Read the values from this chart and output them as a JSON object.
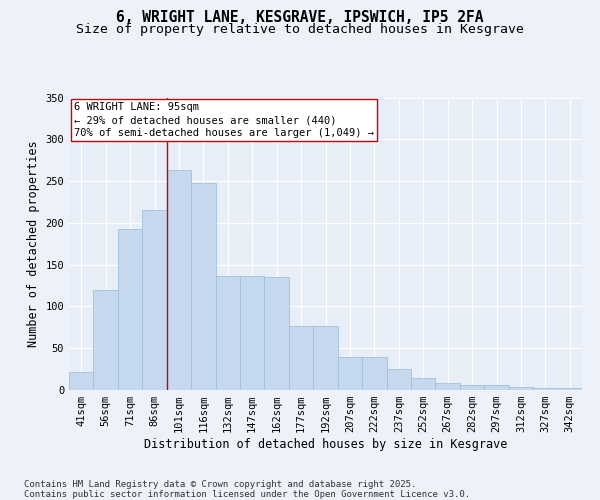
{
  "title_line1": "6, WRIGHT LANE, KESGRAVE, IPSWICH, IP5 2FA",
  "title_line2": "Size of property relative to detached houses in Kesgrave",
  "xlabel": "Distribution of detached houses by size in Kesgrave",
  "ylabel": "Number of detached properties",
  "bar_labels": [
    "41sqm",
    "56sqm",
    "71sqm",
    "86sqm",
    "101sqm",
    "116sqm",
    "132sqm",
    "147sqm",
    "162sqm",
    "177sqm",
    "192sqm",
    "207sqm",
    "222sqm",
    "237sqm",
    "252sqm",
    "267sqm",
    "282sqm",
    "297sqm",
    "312sqm",
    "327sqm",
    "342sqm"
  ],
  "bar_values": [
    22,
    120,
    193,
    215,
    263,
    248,
    136,
    136,
    135,
    77,
    77,
    39,
    39,
    25,
    14,
    8,
    6,
    6,
    4,
    2,
    2
  ],
  "bar_color": "#c5d8ee",
  "bar_edge_color": "#9bbad8",
  "background_color": "#e8eef8",
  "grid_color": "#ffffff",
  "vline_x": 3.5,
  "vline_color": "#cc0000",
  "annotation_text": "6 WRIGHT LANE: 95sqm\n← 29% of detached houses are smaller (440)\n70% of semi-detached houses are larger (1,049) →",
  "annotation_box_facecolor": "#ffffff",
  "annotation_box_edgecolor": "#cc0000",
  "ylim": [
    0,
    350
  ],
  "yticks": [
    0,
    50,
    100,
    150,
    200,
    250,
    300,
    350
  ],
  "footer_text": "Contains HM Land Registry data © Crown copyright and database right 2025.\nContains public sector information licensed under the Open Government Licence v3.0.",
  "title_fontsize": 10.5,
  "subtitle_fontsize": 9.5,
  "axis_label_fontsize": 8.5,
  "tick_fontsize": 7.5,
  "annotation_fontsize": 7.5,
  "footer_fontsize": 6.5,
  "fig_background": "#edf1f9"
}
